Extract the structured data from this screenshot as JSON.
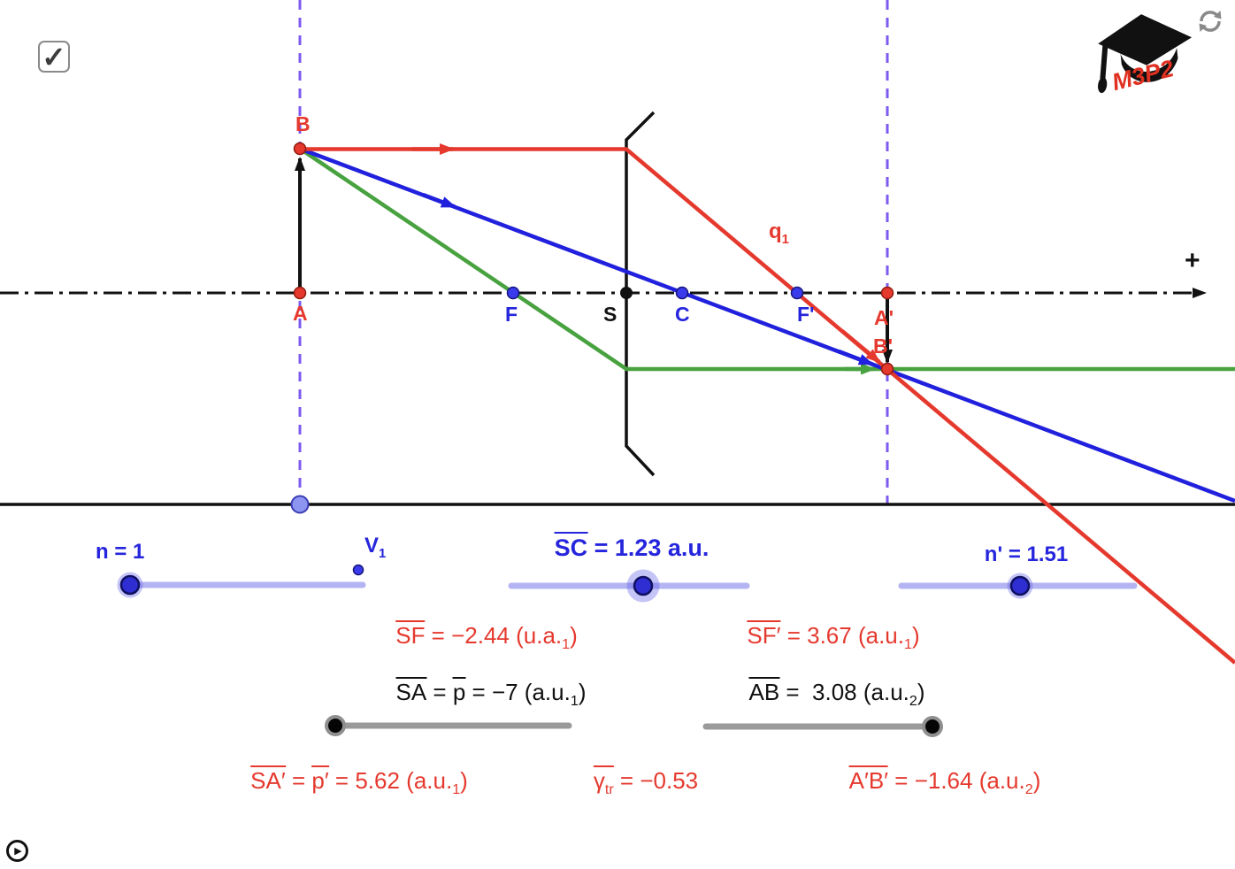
{
  "colors": {
    "red": "#e5392e",
    "blue": "#2525dd",
    "ray_blue": "#2020dd",
    "point_blue": "#3b3bee",
    "green": "#48a23f",
    "purple": "#7d5af0",
    "track": "#b4b4f2",
    "knob_blue": "#2e2ed2",
    "gray_track": "#9a9a9a",
    "logo_red": "#e03020"
  },
  "checkbox": {
    "checked": true,
    "check_glyph": "✓"
  },
  "logo": {
    "text": "M3P2"
  },
  "play": {
    "glyph": "▶"
  },
  "axis": {
    "plus_label": "+"
  },
  "points": {
    "A": "A",
    "B": "B",
    "F": "F",
    "S": "S",
    "C": "C",
    "Fp": "F'",
    "Ap": "A'",
    "Bp": "B'"
  },
  "ray_label": {
    "segments": [
      {
        "t": "q",
        "sub": "1"
      }
    ]
  },
  "sliders": {
    "n": {
      "label": "n = 1"
    },
    "v1": {
      "segments": [
        {
          "t": "V",
          "sub": "1"
        }
      ]
    },
    "sc": {
      "segments": [
        {
          "t": "SC",
          "ov": true
        },
        {
          "t": " = 1.23 a.u."
        }
      ]
    },
    "np": {
      "label": "n' = 1.51"
    }
  },
  "readouts": {
    "sf": {
      "segments": [
        {
          "t": "SF",
          "ov": true
        },
        {
          "t": " = −2.44 (u.a.",
          "sub": "1"
        },
        {
          "t": ")"
        }
      ]
    },
    "sfp": {
      "segments": [
        {
          "t": "SF′",
          "ov": true
        },
        {
          "t": " = 3.67 (a.u.",
          "sub": "1"
        },
        {
          "t": ")"
        }
      ]
    },
    "sa": {
      "segments": [
        {
          "t": "SA",
          "ov": true
        },
        {
          "t": " = "
        },
        {
          "t": "p",
          "ov": true
        },
        {
          "t": " = −7 (a.u.",
          "sub": "1"
        },
        {
          "t": ")"
        }
      ]
    },
    "ab": {
      "segments": [
        {
          "t": "AB",
          "ov": true
        },
        {
          "t": " =  3.08 (a.u.",
          "sub": "2"
        },
        {
          "t": ")"
        }
      ]
    },
    "sap": {
      "segments": [
        {
          "t": "SA′",
          "ov": true
        },
        {
          "t": " = "
        },
        {
          "t": "p′",
          "ov": true
        },
        {
          "t": " = 5.62 (a.u.",
          "sub": "1"
        },
        {
          "t": ")"
        }
      ]
    },
    "gamma": {
      "segments": [
        {
          "t": "γ",
          "sub": "tr",
          "ov": true
        },
        {
          "t": " = −0.53"
        }
      ]
    },
    "apbp": {
      "segments": [
        {
          "t": "A′B′",
          "ov": true
        },
        {
          "t": " = −1.64 (a.u.",
          "sub": "2"
        },
        {
          "t": ")"
        }
      ]
    }
  }
}
